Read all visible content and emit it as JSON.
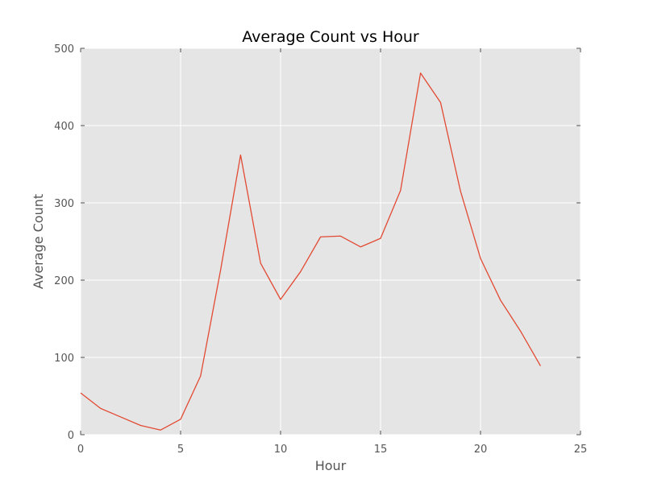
{
  "chart_data": {
    "type": "line",
    "title": "Average Count vs Hour",
    "xlabel": "Hour",
    "ylabel": "Average Count",
    "xlim": [
      0,
      25
    ],
    "ylim": [
      0,
      500
    ],
    "xticks": [
      0,
      5,
      10,
      15,
      20,
      25
    ],
    "yticks": [
      0,
      100,
      200,
      300,
      400,
      500
    ],
    "grid": true,
    "colors": {
      "background": "#e5e5e5",
      "grid": "#ffffff",
      "line": "#e24a33"
    },
    "series": [
      {
        "x": [
          0,
          1,
          2,
          3,
          4,
          5,
          6,
          7,
          8,
          9,
          10,
          11,
          12,
          13,
          14,
          15,
          16,
          17,
          18,
          19,
          20,
          21,
          22,
          23
        ],
        "values": [
          54,
          34,
          23,
          12,
          6,
          20,
          76,
          213,
          362,
          222,
          175,
          211,
          256,
          257,
          243,
          254,
          316,
          468,
          430,
          315,
          228,
          174,
          134,
          89
        ]
      }
    ]
  }
}
